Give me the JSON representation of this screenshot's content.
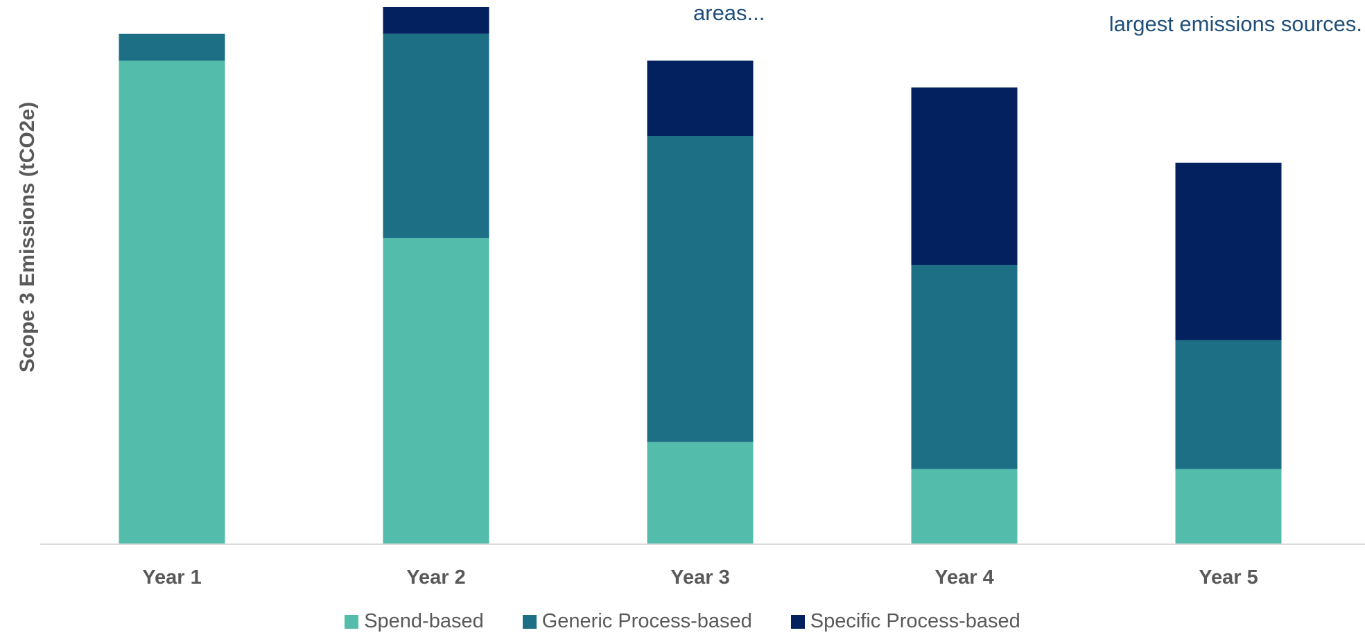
{
  "annotations": [
    "areas...",
    "largest emissions sources."
  ],
  "chart_data": {
    "type": "bar",
    "stacked": true,
    "title": "",
    "xlabel": "",
    "ylabel": "Scope 3 Emissions (tCO2e)",
    "ylim": [
      0,
      100
    ],
    "categories": [
      "Year 1",
      "Year 2",
      "Year 3",
      "Year 4",
      "Year 5"
    ],
    "series": [
      {
        "name": "Spend-based",
        "color": "#54bcaa",
        "values": [
          90,
          57,
          19,
          14,
          14
        ]
      },
      {
        "name": "Generic Process-based",
        "color": "#1d6f86",
        "values": [
          5,
          38,
          57,
          38,
          24
        ]
      },
      {
        "name": "Specific Process-based",
        "color": "#02215e",
        "values": [
          0,
          5,
          14,
          33,
          33
        ]
      }
    ],
    "grid": false,
    "legend_position": "bottom"
  }
}
